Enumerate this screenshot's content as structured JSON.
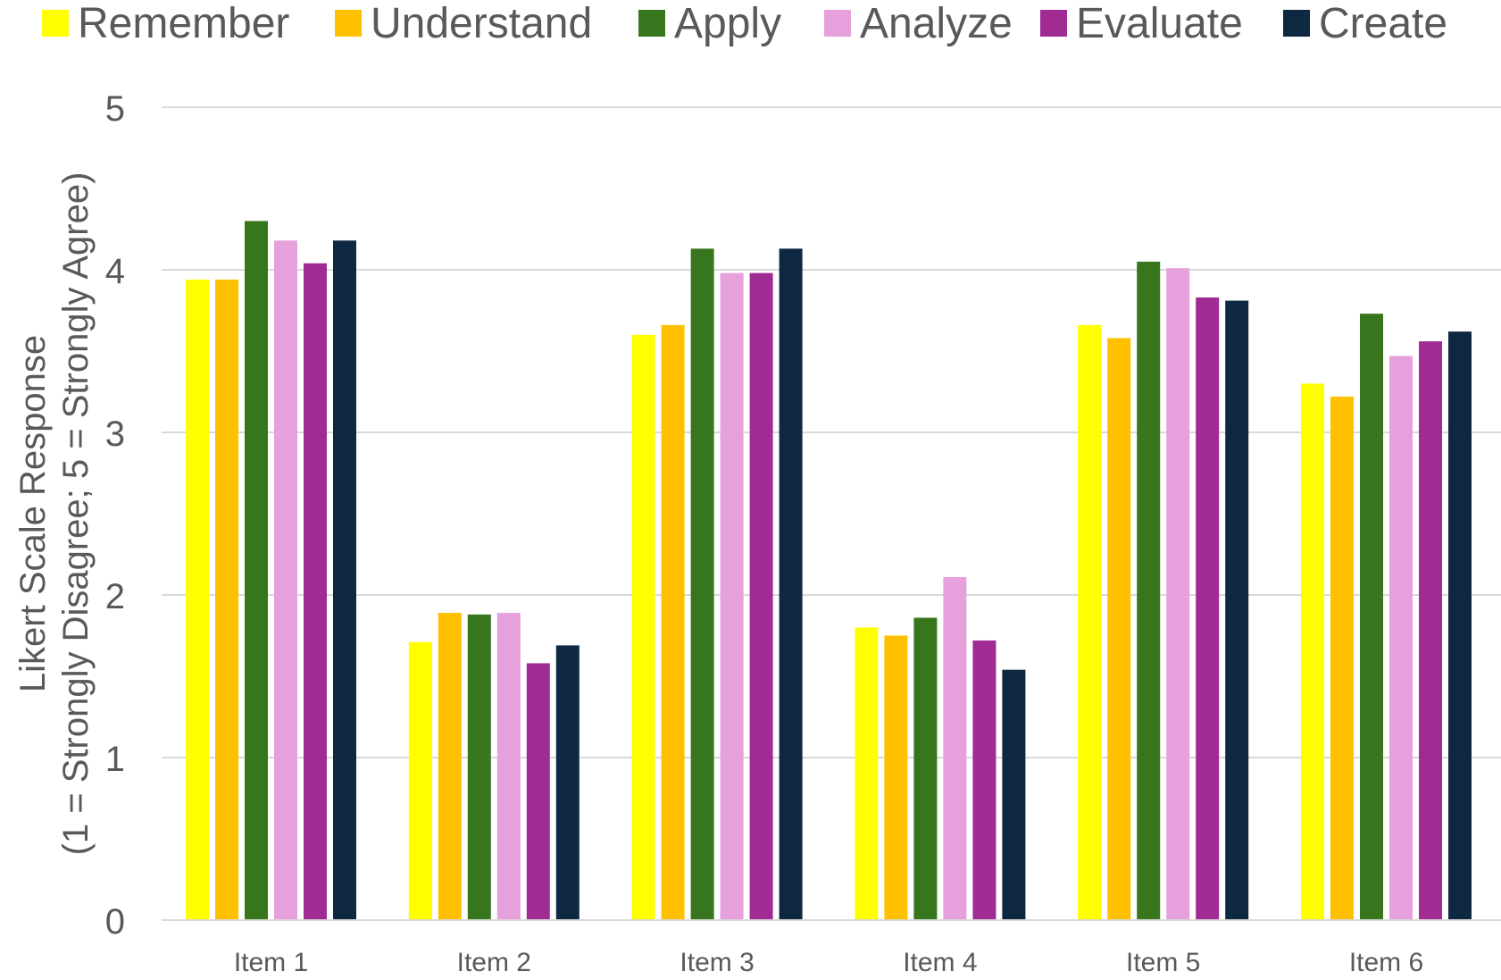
{
  "chart_data": {
    "type": "bar",
    "title": "",
    "xlabel": "",
    "ylabel_lines": [
      "Likert Scale Response",
      "(1 = Strongly Disagree; 5 = Strongly Agree)"
    ],
    "categories": [
      "Item 1",
      "Item 2",
      "Item 3",
      "Item 4",
      "Item 5",
      "Item 6"
    ],
    "series": [
      {
        "name": "Remember",
        "color": "#FFFF00",
        "values": [
          3.94,
          1.71,
          3.6,
          1.8,
          3.66,
          3.3
        ]
      },
      {
        "name": "Understand",
        "color": "#FFC000",
        "values": [
          3.94,
          1.89,
          3.66,
          1.75,
          3.58,
          3.22
        ]
      },
      {
        "name": "Apply",
        "color": "#38761D",
        "values": [
          4.3,
          1.88,
          4.13,
          1.86,
          4.05,
          3.73
        ]
      },
      {
        "name": "Analyze",
        "color": "#E6A0DC",
        "values": [
          4.18,
          1.89,
          3.98,
          2.11,
          4.01,
          3.47
        ]
      },
      {
        "name": "Evaluate",
        "color": "#A02B93",
        "values": [
          4.04,
          1.58,
          3.98,
          1.72,
          3.83,
          3.56
        ]
      },
      {
        "name": "Create",
        "color": "#0E2841",
        "values": [
          4.18,
          1.69,
          4.13,
          1.54,
          3.81,
          3.62
        ]
      }
    ],
    "ylim": [
      0,
      5
    ],
    "yticks": [
      0,
      1,
      2,
      3,
      4,
      5
    ],
    "grid": true,
    "legend_position": "top"
  }
}
